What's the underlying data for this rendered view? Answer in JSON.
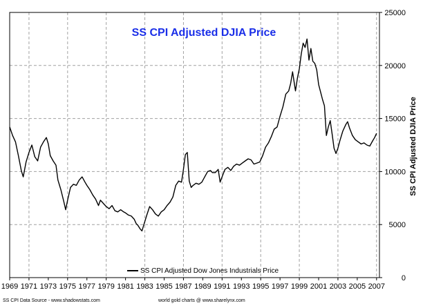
{
  "chart_data": {
    "type": "line",
    "title": "SS CPI Adjusted DJIA Price",
    "xlabel": "",
    "ylabel": "SS CPI Adjusted DJIA Price",
    "xlim": [
      1969,
      2007.3
    ],
    "ylim": [
      0,
      25000
    ],
    "x_ticks": [
      1969,
      1971,
      1973,
      1975,
      1977,
      1979,
      1981,
      1983,
      1985,
      1987,
      1989,
      1991,
      1993,
      1995,
      1997,
      1999,
      2001,
      2003,
      2005,
      2007
    ],
    "x_tick_labels": [
      "1969",
      "1971",
      "1973",
      "1975",
      "1977",
      "1979",
      "1981",
      "1983",
      "1985",
      "1987",
      "1989",
      "1991",
      "1993",
      "1995",
      "1997",
      "1999",
      "2001",
      "2003",
      "2005",
      "2007"
    ],
    "y_ticks": [
      0,
      5000,
      10000,
      15000,
      20000,
      25000
    ],
    "y_tick_labels": [
      "0",
      "5000",
      "10000",
      "15000",
      "20000",
      "25000"
    ],
    "grid": true,
    "legend": {
      "position": "bottom-center",
      "entries": [
        "SS CPI Adjusted Dow Jones Industrials Price"
      ]
    },
    "series": [
      {
        "name": "SS CPI Adjusted Dow Jones Industrials Price",
        "color": "#000000",
        "x": [
          1969.0,
          1969.3,
          1969.6,
          1969.9,
          1970.2,
          1970.4,
          1970.7,
          1971.0,
          1971.3,
          1971.6,
          1971.9,
          1972.2,
          1972.5,
          1972.8,
          1973.0,
          1973.2,
          1973.5,
          1973.8,
          1974.0,
          1974.3,
          1974.6,
          1974.8,
          1975.0,
          1975.3,
          1975.6,
          1975.9,
          1976.2,
          1976.5,
          1976.8,
          1977.0,
          1977.3,
          1977.6,
          1977.9,
          1978.2,
          1978.4,
          1978.7,
          1979.0,
          1979.3,
          1979.6,
          1979.9,
          1980.2,
          1980.5,
          1980.8,
          1981.0,
          1981.3,
          1981.6,
          1981.9,
          1982.1,
          1982.3,
          1982.5,
          1982.7,
          1982.9,
          1983.2,
          1983.5,
          1983.8,
          1984.1,
          1984.4,
          1984.7,
          1985.0,
          1985.3,
          1985.6,
          1985.9,
          1986.2,
          1986.5,
          1986.8,
          1987.0,
          1987.2,
          1987.4,
          1987.6,
          1987.8,
          1988.0,
          1988.3,
          1988.6,
          1988.9,
          1989.2,
          1989.5,
          1989.8,
          1990.0,
          1990.3,
          1990.6,
          1990.8,
          1991.0,
          1991.3,
          1991.6,
          1991.9,
          1992.2,
          1992.5,
          1992.8,
          1993.1,
          1993.4,
          1993.7,
          1994.0,
          1994.3,
          1994.6,
          1994.9,
          1995.2,
          1995.5,
          1995.8,
          1996.1,
          1996.4,
          1996.7,
          1997.0,
          1997.3,
          1997.6,
          1997.9,
          1998.1,
          1998.3,
          1998.6,
          1998.8,
          1999.0,
          1999.2,
          1999.4,
          1999.6,
          1999.8,
          2000.0,
          2000.2,
          2000.4,
          2000.6,
          2000.8,
          2001.0,
          2001.2,
          2001.4,
          2001.6,
          2001.8,
          2002.0,
          2002.2,
          2002.4,
          2002.6,
          2002.8,
          2003.0,
          2003.2,
          2003.5,
          2003.8,
          2004.0,
          2004.2,
          2004.5,
          2004.8,
          2005.1,
          2005.4,
          2005.7,
          2006.0,
          2006.3,
          2006.6,
          2006.8,
          2007.0
        ],
        "values": [
          14200,
          13400,
          12800,
          11500,
          10100,
          9500,
          10900,
          11800,
          12500,
          11400,
          11000,
          12300,
          12800,
          13200,
          12600,
          11500,
          11000,
          10600,
          9200,
          8300,
          7200,
          6400,
          7300,
          8500,
          8800,
          8700,
          9200,
          9500,
          9000,
          8700,
          8300,
          7800,
          7400,
          6800,
          7300,
          7000,
          6700,
          6500,
          6800,
          6300,
          6200,
          6400,
          6200,
          6100,
          5900,
          5800,
          5500,
          5100,
          4900,
          4600,
          4400,
          5000,
          5900,
          6700,
          6400,
          6000,
          5800,
          6200,
          6400,
          6800,
          7100,
          7600,
          8700,
          9100,
          9000,
          10200,
          11600,
          11800,
          9100,
          8500,
          8700,
          8900,
          8800,
          9000,
          9500,
          10000,
          10100,
          9900,
          9900,
          10200,
          9000,
          9500,
          10200,
          10400,
          10100,
          10500,
          10700,
          10600,
          10800,
          11000,
          11200,
          11100,
          10700,
          10800,
          10900,
          11500,
          12300,
          12700,
          13300,
          14000,
          14200,
          15200,
          16100,
          17300,
          17600,
          18300,
          19400,
          17600,
          18800,
          19700,
          21100,
          22100,
          21700,
          22500,
          20500,
          21600,
          20400,
          20200,
          19600,
          18200,
          17500,
          16800,
          16200,
          13400,
          14200,
          14800,
          13500,
          12200,
          11700,
          12200,
          12900,
          13800,
          14400,
          14700,
          14100,
          13400,
          13000,
          12800,
          12600,
          12700,
          12500,
          12400,
          12900,
          13200,
          13600
        ]
      }
    ]
  },
  "footer": {
    "source_left": "SS CPI Data Source - www.shadowstats.com",
    "source_center": "world gold charts @ www.sharelynx.com"
  }
}
